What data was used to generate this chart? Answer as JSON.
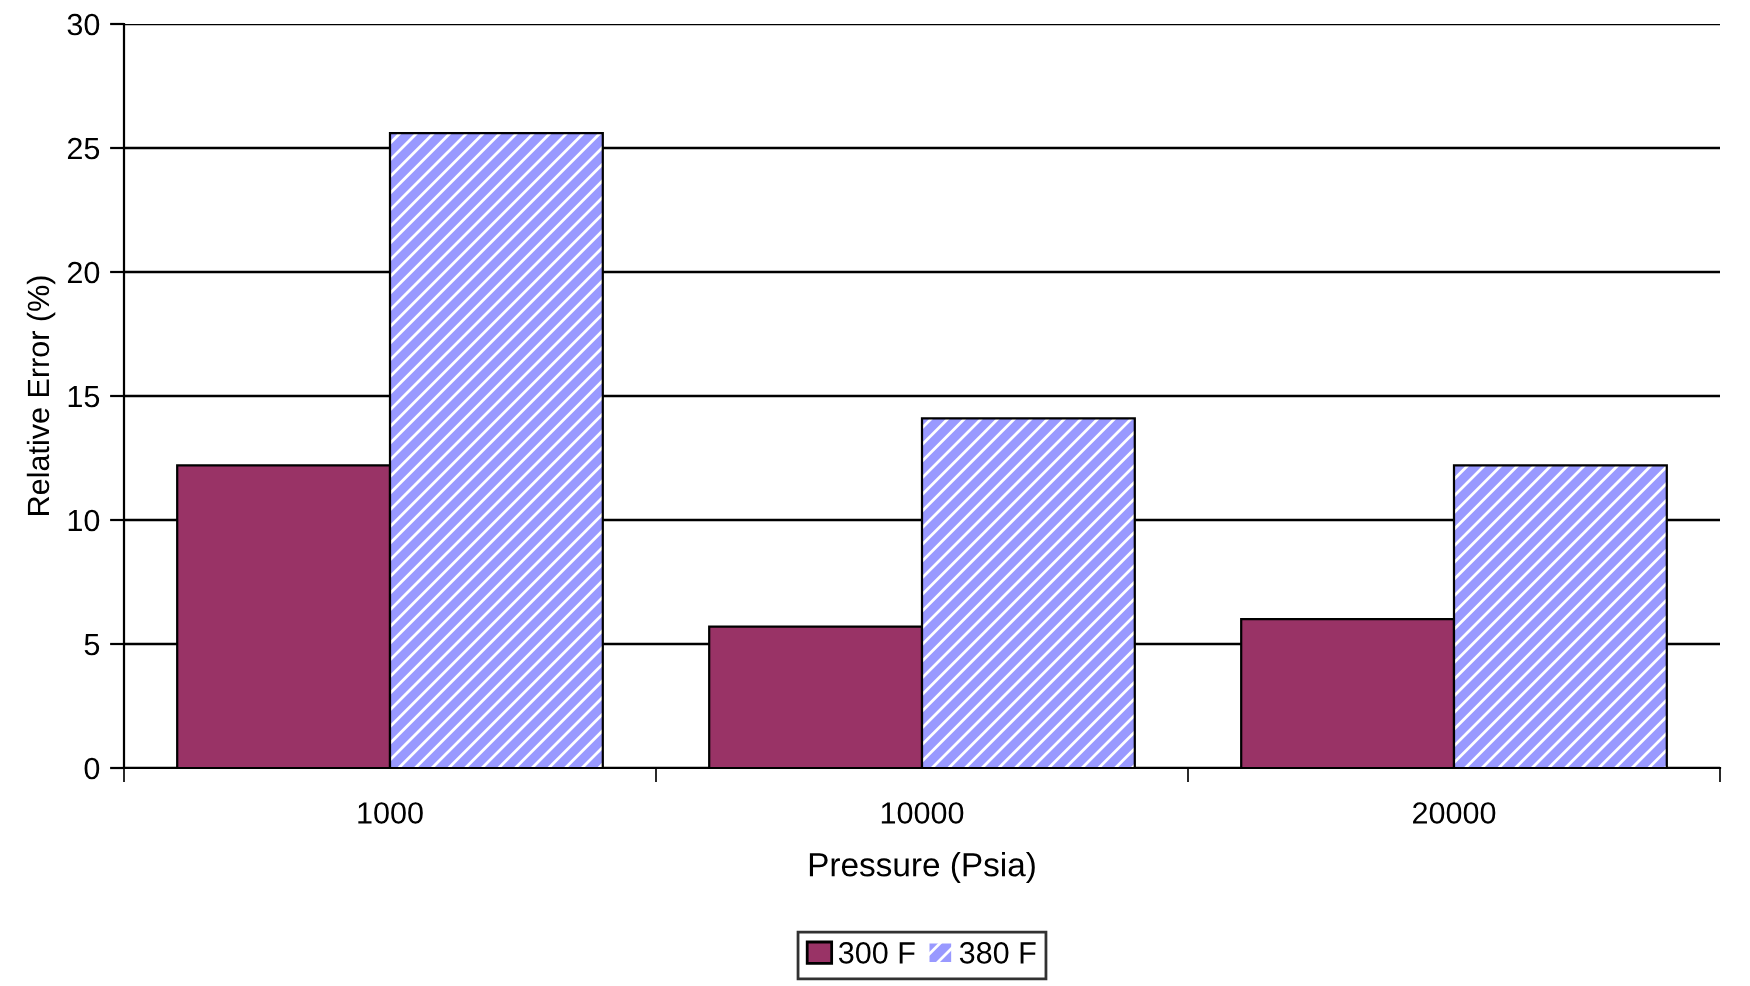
{
  "chart_data": {
    "type": "bar",
    "xlabel": "Pressure (Psia)",
    "ylabel": "Relative Error (%)",
    "categories": [
      "1000",
      "10000",
      "20000"
    ],
    "series": [
      {
        "name": "300 F",
        "color": "#993366",
        "values": [
          12.2,
          5.7,
          6.0
        ]
      },
      {
        "name": "380 F",
        "color": "#9999ff",
        "values": [
          25.6,
          14.1,
          12.2
        ]
      }
    ],
    "ylim": [
      0,
      30
    ],
    "yticks": [
      0,
      5,
      10,
      15,
      20,
      25,
      30
    ],
    "grid": "y",
    "legend": "bottom"
  }
}
